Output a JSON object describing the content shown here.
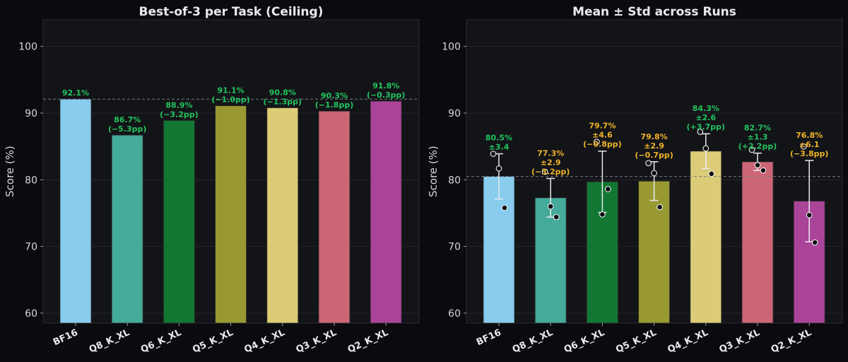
{
  "chart_data": [
    {
      "type": "bar",
      "title": "Best-of-3 per Task (Ceiling)",
      "xlabel": "",
      "ylabel": "Score (%)",
      "ylim": [
        58.5,
        104
      ],
      "yticks": [
        60,
        70,
        80,
        90,
        100
      ],
      "categories": [
        "BF16",
        "Q8_K_XL",
        "Q6_K_XL",
        "Q5_K_XL",
        "Q4_K_XL",
        "Q3_K_XL",
        "Q2_K_XL"
      ],
      "values": [
        92.1,
        86.7,
        88.9,
        91.1,
        90.8,
        90.3,
        91.8
      ],
      "colors": [
        "#88ccee",
        "#44aa99",
        "#117733",
        "#999933",
        "#ddcc77",
        "#cc6677",
        "#aa4499"
      ],
      "reference_line": 92.1,
      "labels": [
        {
          "value": "92.1%",
          "delta": ""
        },
        {
          "value": "86.7%",
          "delta": "(−5.3pp)"
        },
        {
          "value": "88.9%",
          "delta": "(−3.2pp)"
        },
        {
          "value": "91.1%",
          "delta": "(−1.0pp)"
        },
        {
          "value": "90.8%",
          "delta": "(−1.3pp)"
        },
        {
          "value": "90.3%",
          "delta": "(−1.8pp)"
        },
        {
          "value": "91.8%",
          "delta": "(−0.3pp)"
        }
      ]
    },
    {
      "type": "bar",
      "title": "Mean ± Std across Runs",
      "xlabel": "",
      "ylabel": "Score (%)",
      "ylim": [
        58.5,
        104
      ],
      "yticks": [
        60,
        70,
        80,
        90,
        100
      ],
      "categories": [
        "BF16",
        "Q8_K_XL",
        "Q6_K_XL",
        "Q5_K_XL",
        "Q4_K_XL",
        "Q3_K_XL",
        "Q2_K_XL"
      ],
      "values": [
        80.5,
        77.3,
        79.7,
        79.8,
        84.3,
        82.7,
        76.8
      ],
      "std": [
        3.4,
        2.9,
        4.6,
        2.9,
        2.6,
        1.3,
        6.1
      ],
      "colors": [
        "#88ccee",
        "#44aa99",
        "#117733",
        "#999933",
        "#ddcc77",
        "#cc6677",
        "#aa4499"
      ],
      "reference_line": 80.5,
      "runs": [
        [
          83.9,
          81.7,
          75.8
        ],
        [
          81.2,
          76.0,
          74.4
        ],
        [
          85.7,
          74.8,
          78.6
        ],
        [
          82.5,
          81.0,
          75.9
        ],
        [
          87.2,
          84.7,
          80.9
        ],
        [
          84.5,
          82.2,
          81.4
        ],
        [
          85.0,
          74.7,
          70.6
        ]
      ],
      "labels": [
        {
          "value": "80.5%",
          "std": "±3.4",
          "delta": "",
          "color": "#22c55e"
        },
        {
          "value": "77.3%",
          "std": "±2.9",
          "delta": "(−3.2pp)",
          "color": "#f0b429"
        },
        {
          "value": "79.7%",
          "std": "±4.6",
          "delta": "(−0.8pp)",
          "color": "#f0b429"
        },
        {
          "value": "79.8%",
          "std": "±2.9",
          "delta": "(−0.7pp)",
          "color": "#f0b429"
        },
        {
          "value": "84.3%",
          "std": "±2.6",
          "delta": "(+3.7pp)",
          "color": "#22c55e"
        },
        {
          "value": "82.7%",
          "std": "±1.3",
          "delta": "(+2.2pp)",
          "color": "#22c55e"
        },
        {
          "value": "76.8%",
          "std": "±6.1",
          "delta": "(−3.8pp)",
          "color": "#f0b429"
        }
      ]
    }
  ]
}
